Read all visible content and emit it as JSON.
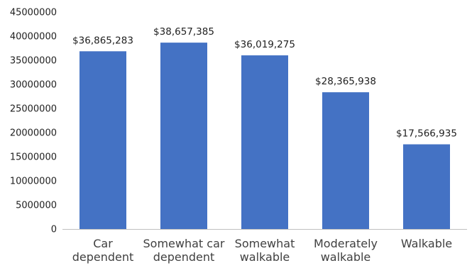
{
  "chart_data": {
    "type": "bar",
    "categories": [
      [
        "Car",
        "dependent"
      ],
      [
        "Somewhat car",
        "dependent"
      ],
      [
        "Somewhat",
        "walkable"
      ],
      [
        "Moderately",
        "walkable"
      ],
      [
        "Walkable"
      ]
    ],
    "values": [
      36865283,
      38657385,
      36019275,
      28365938,
      17566935
    ],
    "data_labels": [
      "$36,865,283",
      "$38,657,385",
      "$36,019,275",
      "$28,365,938",
      "$17,566,935"
    ],
    "y_ticks": [
      "0",
      "5000000",
      "10000000",
      "15000000",
      "20000000",
      "25000000",
      "30000000",
      "35000000",
      "40000000",
      "45000000"
    ],
    "ylim": [
      0,
      45000000
    ],
    "title": "",
    "xlabel": "",
    "ylabel": "",
    "grid": false,
    "legend": "none",
    "bar_color": "#4472c4",
    "axis_color": "#bfbfbf"
  }
}
